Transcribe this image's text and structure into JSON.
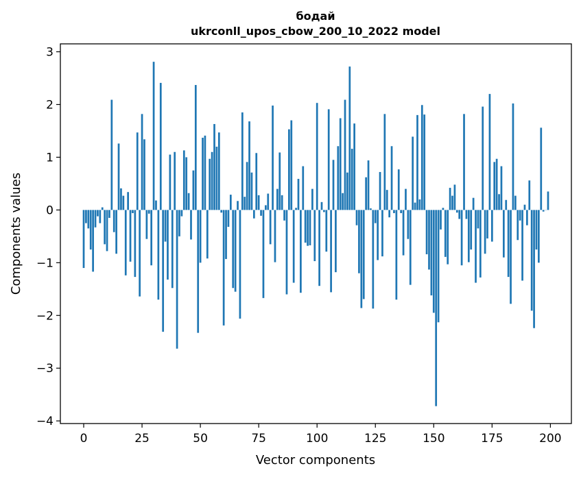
{
  "chart_data": {
    "type": "bar",
    "title_line1": "бодай",
    "title_line2": "ukrconll_upos_cbow_200_10_2022 model",
    "xlabel": "Vector components",
    "ylabel": "Components values",
    "xlim": [
      -10,
      209
    ],
    "ylim": [
      -4.05,
      3.15
    ],
    "xticks": [
      0,
      25,
      50,
      75,
      100,
      125,
      150,
      175,
      200
    ],
    "yticks": [
      -4,
      -3,
      -2,
      -1,
      0,
      1,
      2,
      3
    ],
    "ytick_labels": [
      "−4",
      "−3",
      "−2",
      "−1",
      "0",
      "1",
      "2",
      "3"
    ],
    "bar_color": "#1f77b4",
    "grid": false,
    "values": [
      -1.1,
      -0.25,
      -0.35,
      -0.75,
      -1.17,
      -0.33,
      -0.12,
      -0.25,
      0.05,
      -0.65,
      -0.78,
      -0.15,
      2.09,
      -0.42,
      -0.83,
      1.26,
      0.41,
      0.27,
      -1.24,
      0.34,
      -0.98,
      -0.06,
      -1.27,
      1.47,
      -1.64,
      1.82,
      1.34,
      -0.55,
      -0.07,
      -1.05,
      2.81,
      0.18,
      -1.7,
      2.41,
      -2.31,
      -0.6,
      -1.32,
      1.05,
      -1.48,
      1.1,
      -2.63,
      -0.5,
      -0.12,
      1.13,
      1.0,
      0.32,
      -0.56,
      0.75,
      2.37,
      -2.33,
      -1.0,
      1.37,
      1.41,
      -0.92,
      0.97,
      1.1,
      1.63,
      1.2,
      1.47,
      -0.05,
      -2.19,
      -0.93,
      -0.32,
      0.29,
      -1.48,
      -1.55,
      0.17,
      -2.06,
      1.85,
      0.25,
      0.91,
      1.68,
      0.71,
      -0.16,
      1.08,
      0.28,
      -0.11,
      -1.67,
      0.09,
      0.31,
      -0.65,
      1.98,
      -0.99,
      0.4,
      1.09,
      0.28,
      -0.2,
      -1.6,
      1.53,
      1.7,
      -1.38,
      0.04,
      0.59,
      -1.57,
      0.83,
      -0.62,
      -0.68,
      -0.67,
      0.4,
      -0.97,
      2.03,
      -1.44,
      0.15,
      -0.04,
      -0.79,
      1.91,
      -1.56,
      0.95,
      -1.18,
      1.21,
      1.74,
      0.32,
      2.09,
      0.71,
      2.72,
      1.16,
      1.64,
      -0.29,
      -1.2,
      -1.86,
      -1.69,
      0.62,
      0.94,
      0.03,
      -1.87,
      -0.25,
      -0.95,
      0.72,
      -0.88,
      1.82,
      0.38,
      -0.14,
      1.21,
      -0.06,
      -1.7,
      0.77,
      -0.06,
      -0.86,
      0.4,
      -0.55,
      -1.42,
      1.39,
      0.14,
      1.8,
      0.2,
      1.99,
      1.81,
      -0.84,
      -1.13,
      -1.62,
      -1.95,
      -3.72,
      -2.13,
      -0.37,
      0.04,
      -0.89,
      -1.03,
      0.42,
      0.27,
      0.48,
      -0.05,
      -0.17,
      -1.05,
      1.82,
      -0.17,
      -0.99,
      -0.75,
      0.23,
      -1.38,
      -0.35,
      -1.28,
      1.96,
      -0.83,
      -0.54,
      2.2,
      -0.6,
      0.91,
      0.97,
      0.3,
      0.83,
      -0.9,
      0.19,
      -1.27,
      -1.78,
      2.02,
      0.27,
      -0.57,
      -0.2,
      -1.34,
      0.1,
      -0.29,
      0.56,
      -1.91,
      -2.24,
      -0.75,
      -1.0,
      1.56,
      -0.03,
      0.0,
      0.35
    ]
  }
}
